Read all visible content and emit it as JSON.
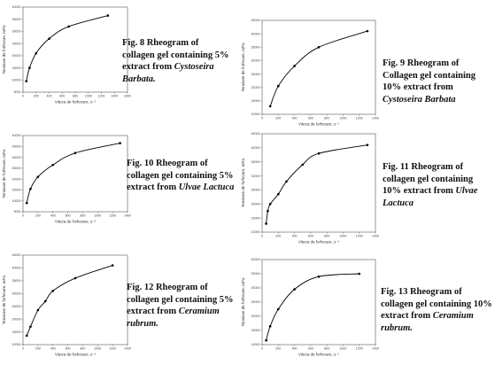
{
  "chart_data": [
    {
      "type": "line",
      "title": "Fig. 8 Rheogram of collagen gel containing 5% extract from Cystoseira Barbata.",
      "caption": {
        "pre": "Fig. 8 Rheogram of collagen  gel containing 5% extract  from ",
        "italic": "Cystoseira Barbata."
      },
      "xlabel": "Viteza de forfecare, s⁻¹",
      "ylabel": "Tensiune de forfecare, mPa",
      "xlim": [
        0,
        1600
      ],
      "ylim": [
        5000,
        40000
      ],
      "xticks": [
        0,
        200,
        400,
        600,
        800,
        1000,
        1200,
        1400,
        1600
      ],
      "yticks": [
        5000,
        10000,
        15000,
        20000,
        25000,
        30000,
        35000,
        40000
      ],
      "x": [
        50,
        100,
        200,
        400,
        700,
        1300
      ],
      "series": [
        {
          "values": [
            9500,
            15000,
            21000,
            27000,
            32000,
            36500
          ]
        }
      ]
    },
    {
      "type": "line",
      "title": "Fig. 9 Rheogram of Collagen gel containing 10% extract from Cystoseira Barbata",
      "caption": {
        "pre": "Fig. 9  Rheogram of Collagen  gel containing 10%  extract from ",
        "italic": "Cystoseira Barbata"
      },
      "xlabel": "Viteza de forfecare, s⁻¹",
      "ylabel": "Tensiune de forfecare, mPa",
      "xlim": [
        0,
        1400
      ],
      "ylim": [
        10000,
        45000
      ],
      "xticks": [
        0,
        200,
        400,
        600,
        800,
        1000,
        1200,
        1400
      ],
      "yticks": [
        10000,
        15000,
        20000,
        25000,
        30000,
        35000,
        40000,
        45000
      ],
      "x": [
        100,
        200,
        400,
        700,
        1300
      ],
      "series": [
        {
          "values": [
            13000,
            20500,
            28000,
            35000,
            41000
          ]
        }
      ]
    },
    {
      "type": "line",
      "title": "Fig. 10 Rheogram of collagen gel containing 5% extract from Ulvae Lactuca",
      "caption": {
        "pre": "Fig. 10  Rheogram of collagen gel containing 5%  extract from  ",
        "italic": "Ulvae Lactuca"
      },
      "xlabel": "Viteza de forfecare, s⁻¹",
      "ylabel": "Tensiune de forfecare, mPa",
      "xlim": [
        0,
        1400
      ],
      "ylim": [
        5000,
        40000
      ],
      "xticks": [
        0,
        200,
        400,
        600,
        800,
        1000,
        1200,
        1400
      ],
      "yticks": [
        5000,
        10000,
        15000,
        20000,
        25000,
        30000,
        35000,
        40000
      ],
      "x": [
        50,
        100,
        200,
        400,
        700,
        1300
      ],
      "series": [
        {
          "values": [
            9000,
            15500,
            21000,
            26500,
            32000,
            36500
          ]
        }
      ]
    },
    {
      "type": "line",
      "title": "Fig. 11 Rheogram of collagen gel containing 10% extract from Ulvae Lactuca",
      "caption": {
        "pre": "Fig. 11 Rheogram of  collagen gel containing 10% extract from ",
        "italic": "Ulvae Lactuca"
      },
      "xlabel": "Viteza de forfecare, s⁻¹",
      "ylabel": "Tensiune de forfecare, mPa",
      "xlim": [
        0,
        1400
      ],
      "ylim": [
        10000,
        45000
      ],
      "xticks": [
        0,
        200,
        400,
        600,
        800,
        1000,
        1200,
        1400
      ],
      "yticks": [
        10000,
        15000,
        20000,
        25000,
        30000,
        35000,
        40000,
        45000
      ],
      "x": [
        50,
        70,
        100,
        200,
        300,
        500,
        700,
        1300
      ],
      "series": [
        {
          "values": [
            13000,
            17500,
            20000,
            23500,
            28000,
            34000,
            38000,
            41000
          ]
        }
      ]
    },
    {
      "type": "line",
      "title": "Fig. 12 Rheogram of collagen gel containing 5% extract from Ceramium rubrum.",
      "caption": {
        "pre": "Fig. 12  Rheogram of collagen  gel containing 5% extract from ",
        "italic": "Ceramium rubrum."
      },
      "xlabel": "Viteza de forfecare, s⁻¹",
      "ylabel": "Tensiune de forfecare, mPa",
      "xlim": [
        0,
        1400
      ],
      "ylim": [
        10000,
        45000
      ],
      "xticks": [
        0,
        200,
        400,
        600,
        800,
        1000,
        1200,
        1400
      ],
      "yticks": [
        10000,
        15000,
        20000,
        25000,
        30000,
        35000,
        40000,
        45000
      ],
      "x": [
        50,
        100,
        200,
        300,
        400,
        700,
        1200
      ],
      "series": [
        {
          "values": [
            13500,
            17000,
            23500,
            27000,
            31000,
            36000,
            41000
          ]
        }
      ]
    },
    {
      "type": "line",
      "title": "Fig. 13 Rheogram of collagen gel containing 10% extract from Ceramium rubrum.",
      "caption": {
        "pre": "Fig. 13  Rheogram of collagen gel containing 10% extract from ",
        "italic": "Ceramium rubrum."
      },
      "xlabel": "Viteza de forfecare, s⁻¹",
      "ylabel": "Tensiune de forfecare, mPa",
      "xlim": [
        0,
        1400
      ],
      "ylim": [
        10000,
        40000
      ],
      "xticks": [
        0,
        200,
        400,
        600,
        800,
        1000,
        1200,
        1400
      ],
      "yticks": [
        10000,
        15000,
        20000,
        25000,
        30000,
        35000,
        40000
      ],
      "x": [
        50,
        100,
        200,
        400,
        700,
        1200
      ],
      "series": [
        {
          "values": [
            11500,
            16500,
            22500,
            29500,
            34000,
            35000
          ]
        }
      ]
    }
  ]
}
